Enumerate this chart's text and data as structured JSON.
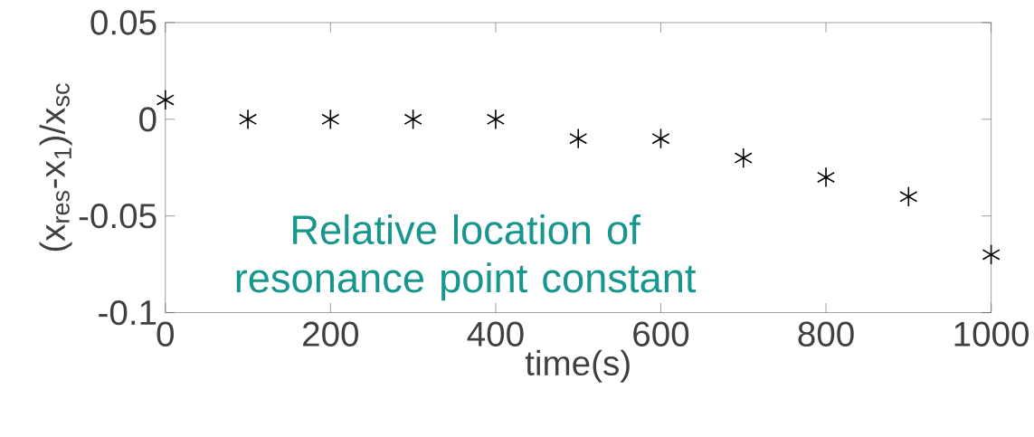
{
  "chart_data": {
    "type": "scatter",
    "xlabel": "time(s)",
    "ylabel": "(x$_{res}$-x$_{1}$)/x$_{sc}$",
    "x": [
      0,
      100,
      200,
      300,
      400,
      500,
      600,
      700,
      800,
      900,
      1000
    ],
    "values": [
      0.01,
      0,
      0,
      0,
      0,
      -0.01,
      -0.01,
      -0.02,
      -0.03,
      -0.04,
      -0.07
    ],
    "color": "#000000",
    "marker": "cross",
    "xlim": [
      0,
      1000
    ],
    "xticks": [
      0,
      200,
      400,
      600,
      800,
      1000
    ],
    "ylim": [
      -0.1,
      0.05
    ],
    "yticks": [
      -0.1,
      -0.05,
      0,
      0.05
    ],
    "grid": false,
    "annotations": [
      "Relative location of resonance point constant"
    ]
  }
}
